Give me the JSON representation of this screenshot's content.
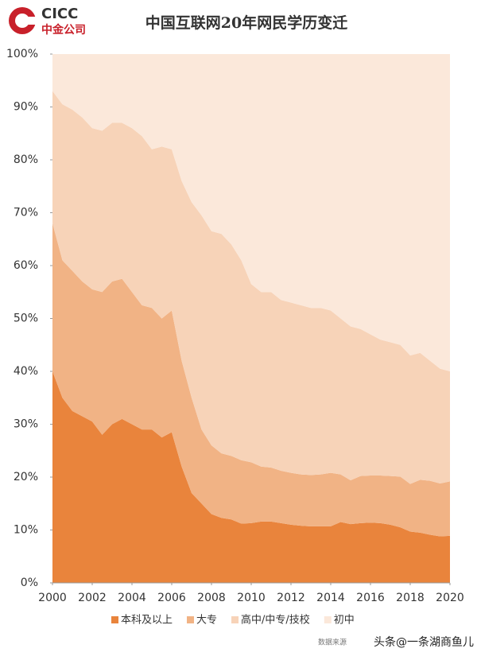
{
  "header": {
    "logo_text": "CICC",
    "logo_subtext": "中金公司"
  },
  "chart_data": {
    "type": "stacked-area",
    "title": "中国互联网20年网民学历变迁",
    "x": [
      2000,
      2000.5,
      2001,
      2001.5,
      2002,
      2002.5,
      2003,
      2003.5,
      2004,
      2004.5,
      2005,
      2005.5,
      2006,
      2006.5,
      2007,
      2007.5,
      2008,
      2008.5,
      2009,
      2009.5,
      2010,
      2010.5,
      2011,
      2011.5,
      2012,
      2012.5,
      2013,
      2013.5,
      2014,
      2014.5,
      2015,
      2015.5,
      2016,
      2016.5,
      2017,
      2017.5,
      2018,
      2018.5,
      2019,
      2019.5,
      2020
    ],
    "series": [
      {
        "name": "本科及以上",
        "color": "#e9843c",
        "values": [
          40,
          35,
          32.5,
          31.5,
          30.5,
          28,
          30,
          31,
          30,
          29,
          29,
          27.5,
          28.5,
          22,
          17,
          15,
          13,
          12.3,
          12,
          11.2,
          11.3,
          11.6,
          11.6,
          11.3,
          11,
          10.8,
          10.7,
          10.7,
          10.7,
          11.5,
          11.1,
          11.3,
          11.4,
          11.3,
          11,
          10.5,
          9.7,
          9.5,
          9.1,
          8.8,
          8.9
        ]
      },
      {
        "name": "大专",
        "color": "#f1b385",
        "values": [
          28,
          26,
          26.5,
          25.5,
          25,
          27,
          27,
          26.5,
          25,
          23.5,
          23,
          22.5,
          23,
          20,
          18,
          14,
          13,
          12.2,
          12,
          12,
          11.5,
          10.4,
          10.2,
          9.9,
          9.8,
          9.7,
          9.7,
          9.8,
          10.1,
          9,
          8.3,
          8.9,
          8.9,
          9,
          9.2,
          9.6,
          9,
          10,
          10.2,
          10,
          10.3
        ]
      },
      {
        "name": "高中/中专/技校",
        "color": "#f7d3b8",
        "values": [
          25,
          29.5,
          30.5,
          31,
          30.5,
          30.5,
          30,
          29.5,
          31,
          32,
          30,
          32.5,
          30.5,
          34,
          37,
          40.5,
          40.5,
          41.5,
          40,
          37.8,
          33.7,
          33,
          33.2,
          32.3,
          32.2,
          32,
          31.6,
          31.5,
          30.7,
          29.5,
          29.1,
          27.8,
          26.7,
          25.7,
          25.3,
          24.9,
          24.3,
          24,
          22.7,
          21.7,
          20.8
        ]
      },
      {
        "name": "初中",
        "color": "#fbe8da",
        "values": [
          7,
          9.5,
          10.5,
          12,
          14,
          14.5,
          13,
          13,
          14,
          15.5,
          18,
          17.5,
          18,
          24,
          28,
          30.5,
          33.5,
          34,
          36,
          39,
          43.5,
          45,
          45,
          46.5,
          47,
          47.5,
          48,
          48,
          48.5,
          50,
          51.5,
          52,
          53,
          54,
          54.5,
          55,
          57,
          56.5,
          58,
          59.5,
          60
        ]
      }
    ],
    "xlim": [
      2000,
      2020
    ],
    "xticks": [
      2000,
      2002,
      2004,
      2006,
      2008,
      2010,
      2012,
      2014,
      2016,
      2018,
      2020
    ],
    "ylim": [
      0,
      100
    ],
    "yticks": [
      {
        "value": 0,
        "label": "0%"
      },
      {
        "value": 10,
        "label": "10%"
      },
      {
        "value": 20,
        "label": "20%"
      },
      {
        "value": 30,
        "label": "30%"
      },
      {
        "value": 40,
        "label": "40%"
      },
      {
        "value": 50,
        "label": "50%"
      },
      {
        "value": 60,
        "label": "60%"
      },
      {
        "value": 70,
        "label": "70%"
      },
      {
        "value": 80,
        "label": "80%"
      },
      {
        "value": 90,
        "label": "90%"
      },
      {
        "value": 100,
        "label": "100%"
      }
    ],
    "grid": false
  },
  "footer": {
    "source": "数据来源",
    "watermark": "头条@一条湖商鱼儿"
  }
}
